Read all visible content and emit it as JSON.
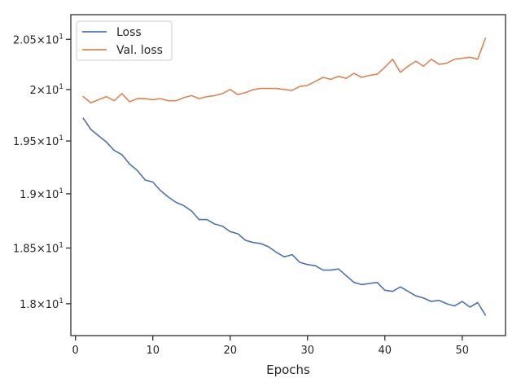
{
  "chart_data": {
    "type": "line",
    "title": "",
    "xlabel": "Epochs",
    "ylabel": "",
    "xlim": [
      -0.6,
      55.6
    ],
    "ylim": [
      17.72,
      20.75
    ],
    "x_ticks": [
      0,
      10,
      20,
      30,
      40,
      50
    ],
    "x_tick_labels": [
      "0",
      "10",
      "20",
      "30",
      "40",
      "50"
    ],
    "y_ticks": [
      18.0,
      18.5,
      19.0,
      19.5,
      20.0,
      20.5
    ],
    "y_tick_labels": [
      {
        "mantissa": "1.8",
        "exponent": "1"
      },
      {
        "mantissa": "1.85",
        "exponent": "1"
      },
      {
        "mantissa": "1.9",
        "exponent": "1"
      },
      {
        "mantissa": "1.95",
        "exponent": "1"
      },
      {
        "mantissa": "2",
        "exponent": "1"
      },
      {
        "mantissa": "2.05",
        "exponent": "1"
      }
    ],
    "y_scale": "log",
    "grid": false,
    "legend_position": "top-left",
    "x": [
      1,
      2,
      3,
      4,
      5,
      6,
      7,
      8,
      9,
      10,
      11,
      12,
      13,
      14,
      15,
      16,
      17,
      18,
      19,
      20,
      21,
      22,
      23,
      24,
      25,
      26,
      27,
      28,
      29,
      30,
      31,
      32,
      33,
      34,
      35,
      36,
      37,
      38,
      39,
      40,
      41,
      42,
      43,
      44,
      45,
      46,
      47,
      48,
      49,
      50,
      51,
      52,
      53
    ],
    "series": [
      {
        "name": "Loss",
        "color": "#4c72b0",
        "values": [
          19.72,
          19.61,
          19.55,
          19.49,
          19.41,
          19.37,
          19.28,
          19.22,
          19.13,
          19.11,
          19.03,
          18.97,
          18.92,
          18.89,
          18.84,
          18.76,
          18.76,
          18.72,
          18.7,
          18.65,
          18.63,
          18.57,
          18.55,
          18.54,
          18.51,
          18.46,
          18.42,
          18.44,
          18.37,
          18.35,
          18.34,
          18.3,
          18.3,
          18.31,
          18.25,
          18.19,
          18.17,
          18.18,
          18.19,
          18.12,
          18.11,
          18.15,
          18.11,
          18.07,
          18.05,
          18.02,
          18.03,
          18.0,
          17.98,
          18.02,
          17.97,
          18.01,
          17.9
        ]
      },
      {
        "name": "Val. loss",
        "color": "#dd8452",
        "values": [
          19.93,
          19.87,
          19.9,
          19.93,
          19.89,
          19.96,
          19.88,
          19.91,
          19.91,
          19.9,
          19.91,
          19.89,
          19.89,
          19.92,
          19.94,
          19.91,
          19.93,
          19.94,
          19.96,
          20.0,
          19.95,
          19.97,
          20.0,
          20.01,
          20.01,
          20.01,
          20.0,
          19.99,
          20.03,
          20.04,
          20.08,
          20.12,
          20.1,
          20.13,
          20.11,
          20.16,
          20.12,
          20.14,
          20.15,
          20.22,
          20.3,
          20.17,
          20.23,
          20.28,
          20.23,
          20.3,
          20.25,
          20.26,
          20.3,
          20.31,
          20.32,
          20.3,
          20.51
        ]
      }
    ]
  }
}
